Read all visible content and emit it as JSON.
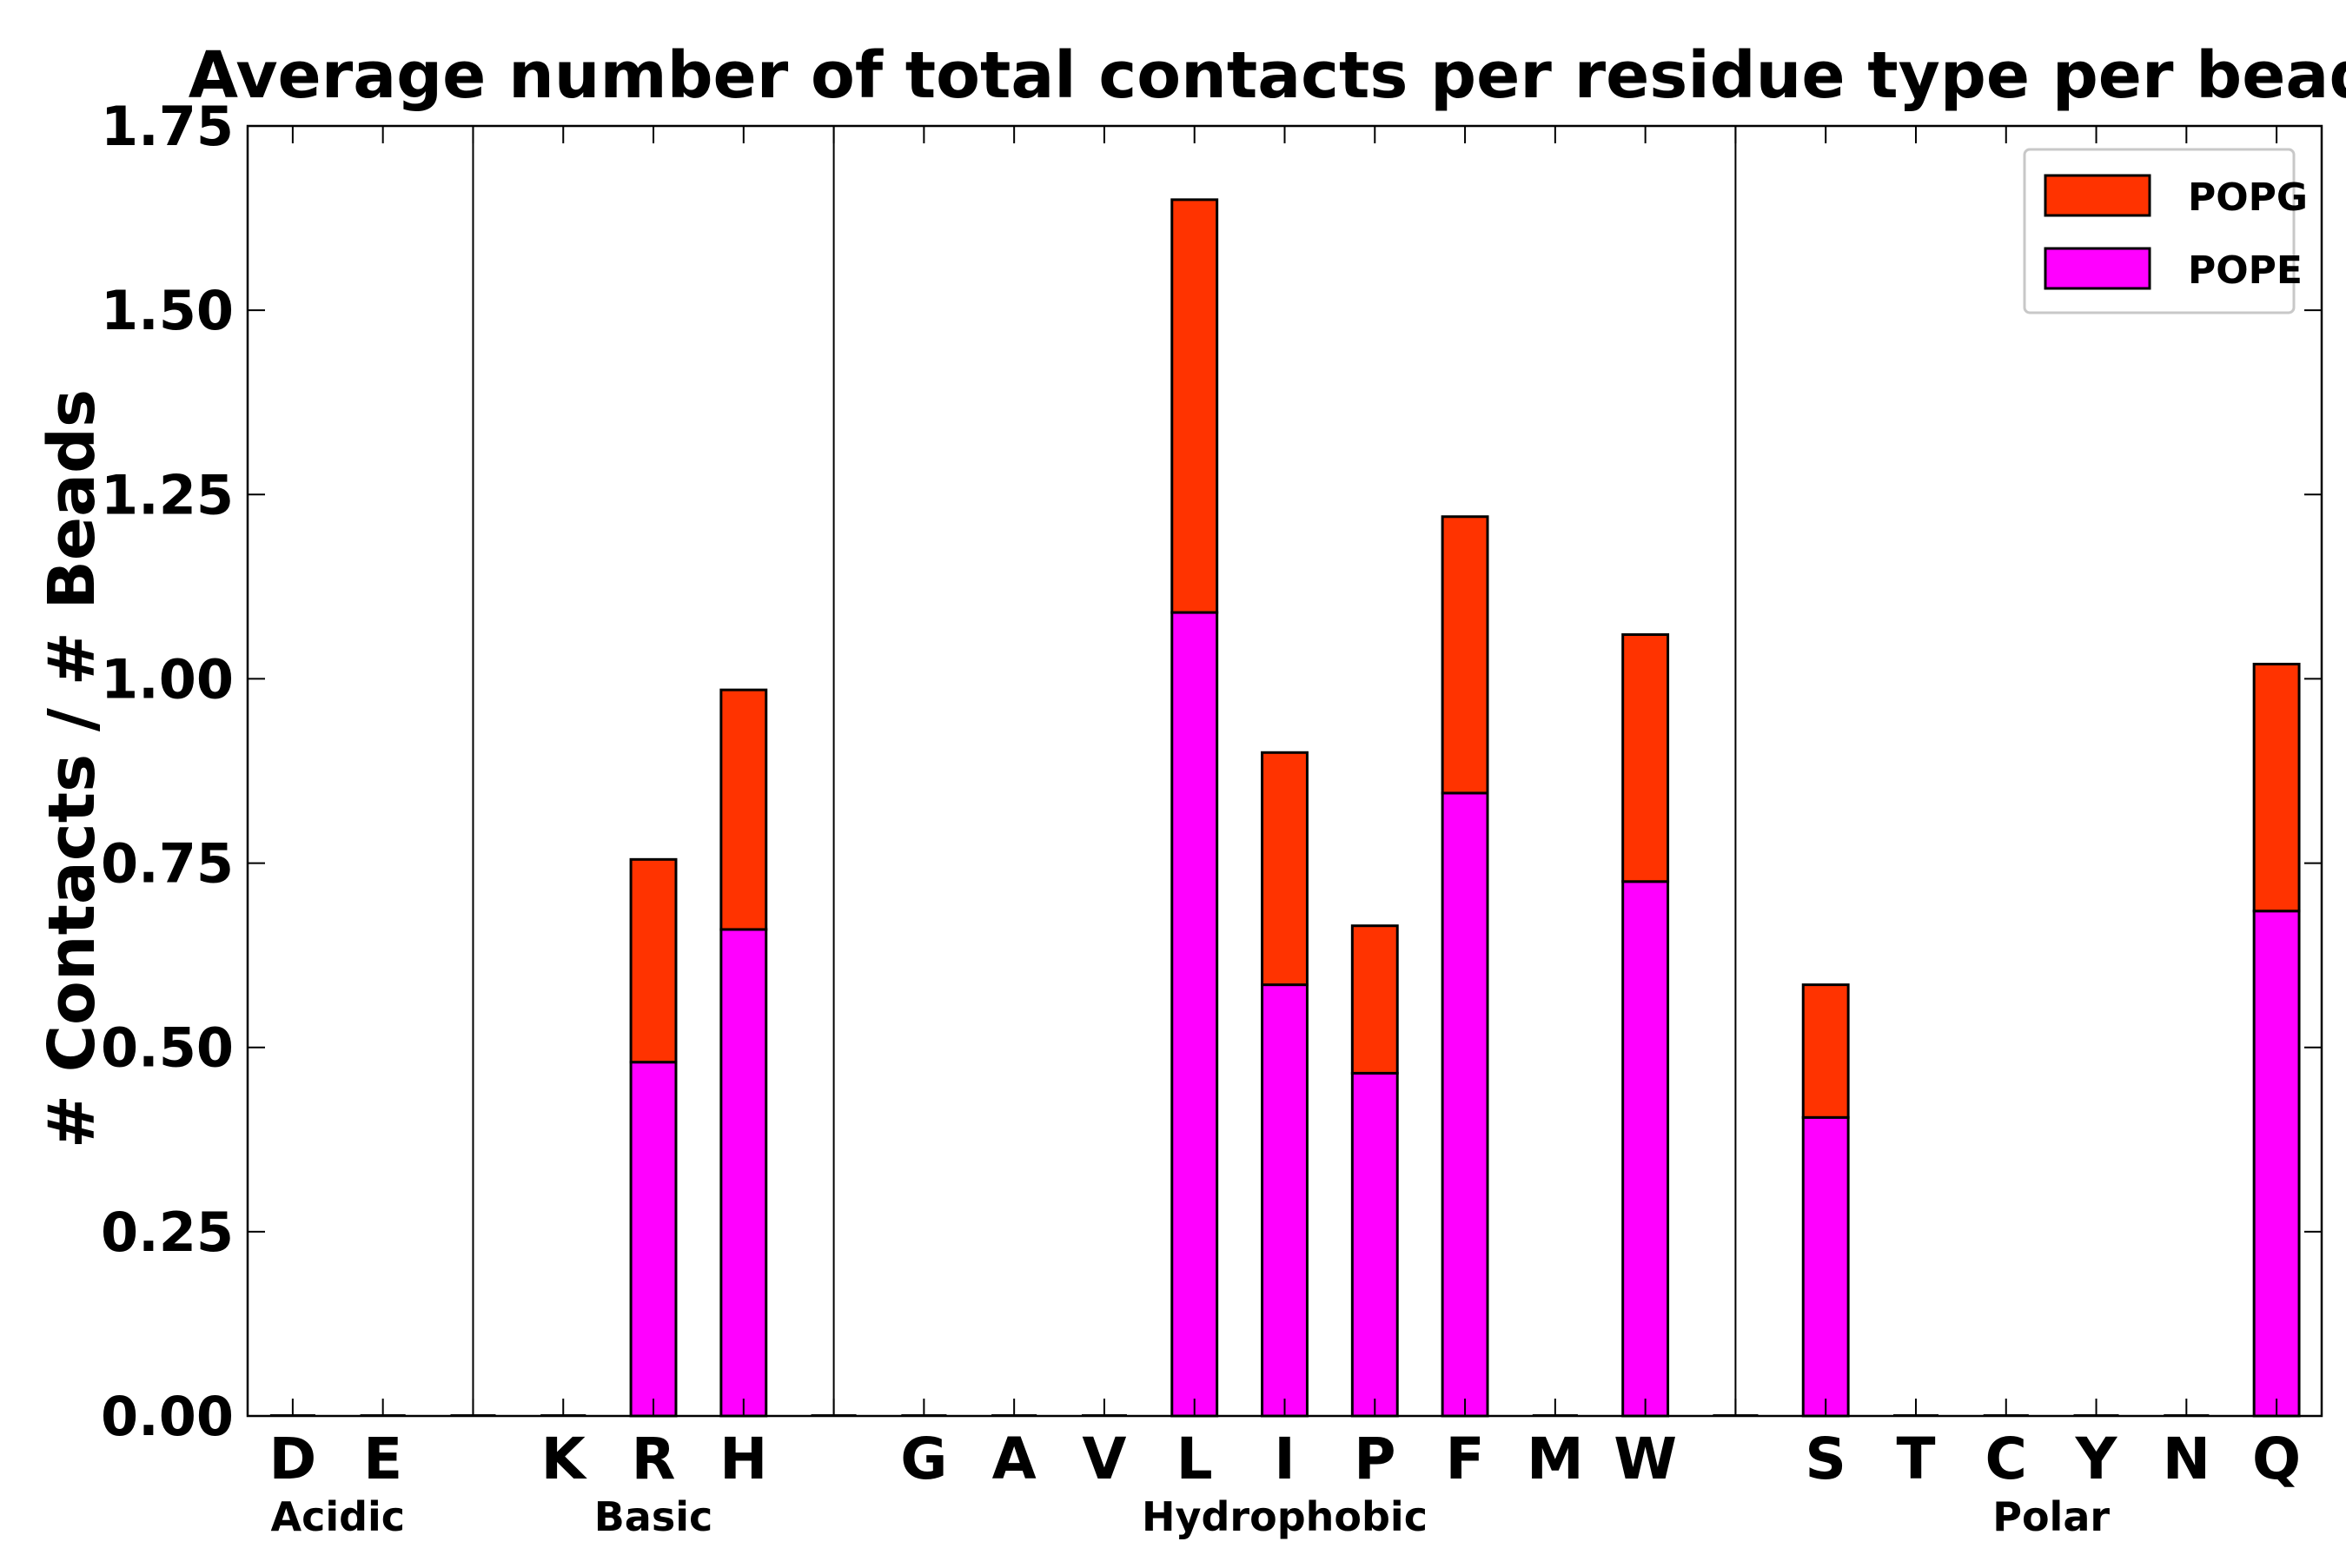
{
  "chart_data": {
    "type": "bar",
    "stacked": true,
    "title": "Average number of total contacts per residue type per bead",
    "xlabel": "",
    "ylabel": "# Contacts / # Beads",
    "ylim": [
      0,
      1.75
    ],
    "yticks": [
      "0.00",
      "0.25",
      "0.50",
      "0.75",
      "1.00",
      "1.25",
      "1.50",
      "1.75"
    ],
    "grid": false,
    "legend_position": "top-right",
    "categories": [
      "D",
      "E",
      "",
      "K",
      "R",
      "H",
      "",
      "G",
      "A",
      "V",
      "L",
      "I",
      "P",
      "F",
      "M",
      "W",
      "",
      "S",
      "T",
      "C",
      "Y",
      "N",
      "Q"
    ],
    "series": [
      {
        "name": "POPE",
        "color": "#ff00ff",
        "values": [
          0,
          0,
          0,
          0,
          0.48,
          0.66,
          0,
          0,
          0,
          0,
          1.09,
          0.585,
          0.465,
          0.845,
          0,
          0.725,
          0,
          0.405,
          0,
          0,
          0,
          0,
          0.685
        ]
      },
      {
        "name": "POPG",
        "color": "#ff3300",
        "values": [
          0,
          0,
          0,
          0,
          0.275,
          0.325,
          0,
          0,
          0,
          0,
          0.56,
          0.315,
          0.2,
          0.375,
          0,
          0.335,
          0,
          0.18,
          0,
          0,
          0,
          0,
          0.335
        ]
      }
    ],
    "legend_entries": [
      "POPG",
      "POPE"
    ],
    "groups": [
      {
        "label": "Acidic",
        "start": 0,
        "end": 1
      },
      {
        "label": "Basic",
        "start": 3,
        "end": 5
      },
      {
        "label": "Hydrophobic",
        "start": 7,
        "end": 15
      },
      {
        "label": "Polar",
        "start": 17,
        "end": 22
      }
    ],
    "separators_after": [
      2,
      6,
      16
    ]
  }
}
